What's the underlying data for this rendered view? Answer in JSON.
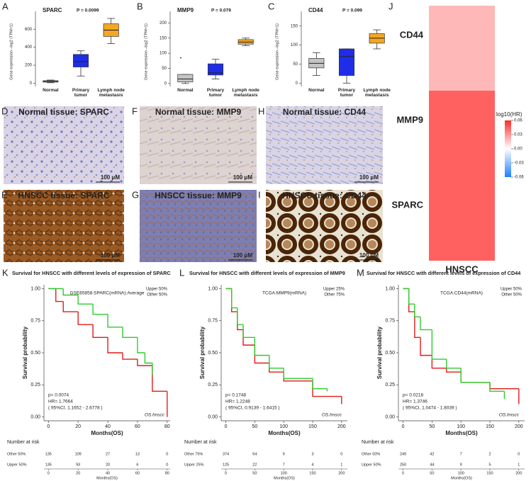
{
  "chart_data": [
    {
      "type": "box",
      "letter": "A",
      "title": "SPARC",
      "annotation": "P = 0.0099",
      "ylabel": "Gene expression –log2 (TPM+1)",
      "categories": [
        "Normal",
        "Primary tumor",
        "Lymph node metastasis"
      ],
      "colors": [
        "#c4c4c4",
        "#1f2de8",
        "#f5a623"
      ],
      "boxes": [
        {
          "min": 5,
          "q1": 12,
          "median": 20,
          "q3": 28,
          "max": 35
        },
        {
          "min": 80,
          "q1": 180,
          "median": 240,
          "q3": 320,
          "max": 360
        },
        {
          "min": 440,
          "q1": 520,
          "median": 590,
          "q3": 660,
          "max": 720
        }
      ],
      "ylim": [
        -20,
        720
      ],
      "yticks": [
        0,
        200,
        400,
        600
      ]
    },
    {
      "type": "box",
      "letter": "B",
      "title": "MMP9",
      "annotation": "P = 0.079",
      "ylabel": "Gene expression –log2 (TPM+1)",
      "categories": [
        "Normal",
        "Primary tumor",
        "Lymph node metastasis"
      ],
      "colors": [
        "#c4c4c4",
        "#1f2de8",
        "#f5a623"
      ],
      "boxes": [
        {
          "min": 0,
          "q1": 5,
          "median": 15,
          "q3": 30,
          "max": 30,
          "outliers": [
            85
          ]
        },
        {
          "min": 15,
          "q1": 28,
          "median": 35,
          "q3": 65,
          "max": 80
        },
        {
          "min": 125,
          "q1": 130,
          "median": 137,
          "q3": 145,
          "max": 150
        }
      ],
      "ylim": [
        -5,
        215
      ],
      "yticks": [
        0,
        50,
        100,
        150,
        200
      ]
    },
    {
      "type": "box",
      "letter": "C",
      "title": "CD44",
      "annotation": "P = 0.099",
      "ylabel": "Gene expression –log2 (TPM+1)",
      "categories": [
        "Normal",
        "Primary tumor",
        "Lymph node metastasis"
      ],
      "colors": [
        "#c4c4c4",
        "#1f2de8",
        "#f5a623"
      ],
      "boxes": [
        {
          "min": 20,
          "q1": 40,
          "median": 52,
          "q3": 65,
          "max": 80
        },
        {
          "min": 0,
          "q1": 20,
          "median": 70,
          "q3": 90,
          "max": 90
        },
        {
          "min": 90,
          "q1": 105,
          "median": 118,
          "q3": 130,
          "max": 140
        }
      ],
      "ylim": [
        -5,
        170
      ],
      "yticks": [
        0,
        50,
        100,
        150
      ]
    },
    {
      "type": "heatmap",
      "letter": "J",
      "categories": [
        "CD44",
        "MMP9",
        "SPARC"
      ],
      "xlabel": "HNSCC",
      "values": [
        0.02,
        0.045,
        0.045
      ],
      "colorbar_title": "log10(HR)",
      "clim": [
        -0.06,
        0.06
      ],
      "cticks": [
        0.06,
        0.03,
        {
          "value": 0,
          "label": "0.00"
        },
        -0.03,
        -0.06
      ],
      "colors": [
        "#1e7fff",
        "#ffffff",
        "#ff2b2b"
      ]
    },
    {
      "type": "km",
      "letter": "K",
      "title": "Survival for HNSCC with different levels of expression of SPARC",
      "xlabel": "Months(OS)",
      "ylabel": "Survival probability",
      "annotation": "GSE65858:SPARC(mRNA):Average",
      "stats": [
        "p= 0.0074",
        "HR= 1.7664",
        "( 95%CI, 1.1652 - 2.6778 )"
      ],
      "endpoint": "OS.hnscc",
      "xlim": [
        -3,
        82
      ],
      "xticks": [
        0,
        20,
        40,
        60,
        80
      ],
      "ylim": [
        -0.03,
        1.03
      ],
      "yticks": [
        {
          "value": 0,
          "label": "0.00"
        },
        0.25,
        {
          "value": 0.5,
          "label": "0.50"
        },
        0.75,
        {
          "value": 1,
          "label": "1.00"
        }
      ],
      "risk_title": "Number at risk",
      "series": [
        {
          "name": "Upper 50%",
          "color": "#e41a1c",
          "x": [
            0,
            5,
            10,
            20,
            30,
            40,
            50,
            60,
            70,
            80
          ],
          "values": [
            1,
            0.9,
            0.82,
            0.72,
            0.62,
            0.5,
            0.45,
            0.4,
            0.2,
            0
          ],
          "at_risk": [
            135,
            93,
            20,
            6,
            0
          ]
        },
        {
          "name": "Other 50%",
          "color": "#2ecc2e",
          "x": [
            0,
            10,
            20,
            30,
            40,
            50,
            60,
            65,
            70
          ],
          "values": [
            1,
            0.95,
            0.88,
            0.8,
            0.7,
            0.62,
            0.5,
            0.42,
            0.33
          ],
          "at_risk": [
            135,
            109,
            27,
            13,
            0
          ]
        }
      ]
    },
    {
      "type": "km",
      "letter": "L",
      "title": "Survival for HNSCC with different levels of expression of MMP9",
      "xlabel": "Months(OS)",
      "ylabel": "Survival probability",
      "annotation": "TCGA:MMP9(mRNA)",
      "stats": [
        "p= 0.1748",
        "HR= 1.2248",
        "( 95%CI, 0.9139 - 1.6415 )"
      ],
      "endpoint": "OS.hnscc",
      "xlim": [
        -8,
        210
      ],
      "xticks": [
        0,
        50,
        100,
        150,
        200
      ],
      "ylim": [
        -0.03,
        1.03
      ],
      "yticks": [
        {
          "value": 0,
          "label": "0.00"
        },
        0.25,
        {
          "value": 0.5,
          "label": "0.50"
        },
        0.75,
        {
          "value": 1,
          "label": "1.00"
        }
      ],
      "risk_title": "Number at risk",
      "series": [
        {
          "name": "Upper 25%",
          "color": "#e41a1c",
          "x": [
            0,
            10,
            20,
            30,
            50,
            75,
            100,
            150,
            200
          ],
          "values": [
            1,
            0.82,
            0.68,
            0.56,
            0.42,
            0.35,
            0.28,
            0.16,
            0.1
          ],
          "at_risk": [
            125,
            22,
            7,
            4,
            1
          ]
        },
        {
          "name": "Other 75%",
          "color": "#2ecc2e",
          "x": [
            0,
            10,
            20,
            30,
            50,
            75,
            100,
            150,
            175
          ],
          "values": [
            1,
            0.85,
            0.72,
            0.62,
            0.48,
            0.38,
            0.3,
            0.22,
            0.2
          ],
          "at_risk": [
            374,
            64,
            9,
            3,
            0
          ]
        }
      ]
    },
    {
      "type": "km",
      "letter": "M",
      "title": "Survival for HNSCC with different levels of expression of CD44",
      "xlabel": "Months(OS)",
      "ylabel": "Survival probability",
      "annotation": "TCGA:CD44(mRNA)",
      "stats": [
        "p= 0.0218",
        "HR= 1.3746",
        "( 95%CI, 1.0474 - 1.8039 )"
      ],
      "endpoint": "OS.hnscc",
      "xlim": [
        -8,
        210
      ],
      "xticks": [
        0,
        50,
        100,
        150,
        200
      ],
      "ylim": [
        -0.03,
        1.03
      ],
      "yticks": [
        {
          "value": 0,
          "label": "0.00"
        },
        0.25,
        {
          "value": 0.5,
          "label": "0.50"
        },
        0.75,
        {
          "value": 1,
          "label": "1.00"
        }
      ],
      "risk_title": "Number at risk",
      "series": [
        {
          "name": "Upper 50%",
          "color": "#e41a1c",
          "x": [
            0,
            10,
            20,
            30,
            50,
            75,
            100,
            150,
            200
          ],
          "values": [
            1,
            0.82,
            0.62,
            0.48,
            0.38,
            0.35,
            0.27,
            0.22,
            0.1
          ],
          "at_risk": [
            250,
            44,
            9,
            5,
            1
          ]
        },
        {
          "name": "Other 50%",
          "color": "#2ecc2e",
          "x": [
            0,
            10,
            20,
            30,
            50,
            75,
            100,
            150,
            175
          ],
          "values": [
            1,
            0.88,
            0.78,
            0.68,
            0.45,
            0.38,
            0.27,
            0.2,
            0.14
          ],
          "at_risk": [
            249,
            42,
            7,
            2,
            0
          ]
        }
      ]
    }
  ],
  "images": [
    {
      "letter": "D",
      "caption": "Normal tissue: SPARC",
      "scale_bar": "100 μM"
    },
    {
      "letter": "F",
      "caption": "Normal tissue: MMP9",
      "scale_bar": "100 μM"
    },
    {
      "letter": "H",
      "caption": "Normal tissue: CD44",
      "scale_bar": "100 μM"
    },
    {
      "letter": "E",
      "caption": "HNSCC tissue: SPARC",
      "scale_bar": "100 μM"
    },
    {
      "letter": "G",
      "caption": "HNSCC tissue: MMP9",
      "scale_bar": "100 μM"
    },
    {
      "letter": "I",
      "caption": "HNSCC tissue: CD44",
      "scale_bar": "100 μM"
    }
  ]
}
